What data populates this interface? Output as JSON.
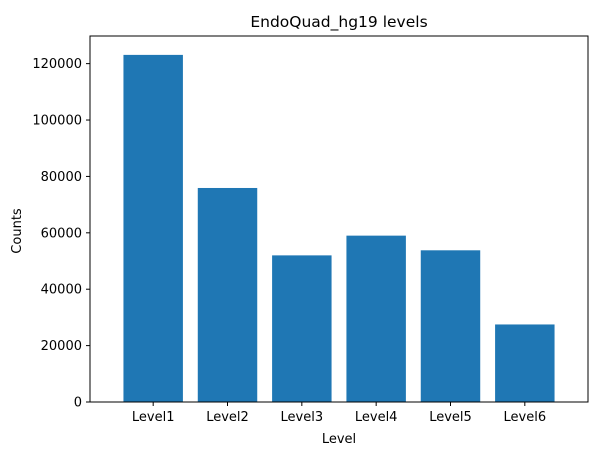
{
  "chart_data": {
    "type": "bar",
    "title": "EndoQuad_hg19 levels",
    "xlabel": "Level",
    "ylabel": "Counts",
    "categories": [
      "Level1",
      "Level2",
      "Level3",
      "Level4",
      "Level5",
      "Level6"
    ],
    "values": [
      123100,
      75900,
      52000,
      59000,
      53800,
      27500
    ],
    "ylim": [
      0,
      129800
    ],
    "yticks": [
      0,
      20000,
      40000,
      60000,
      80000,
      100000,
      120000
    ],
    "bar_color": "#1f77b4",
    "grid": false,
    "legend": "none"
  }
}
